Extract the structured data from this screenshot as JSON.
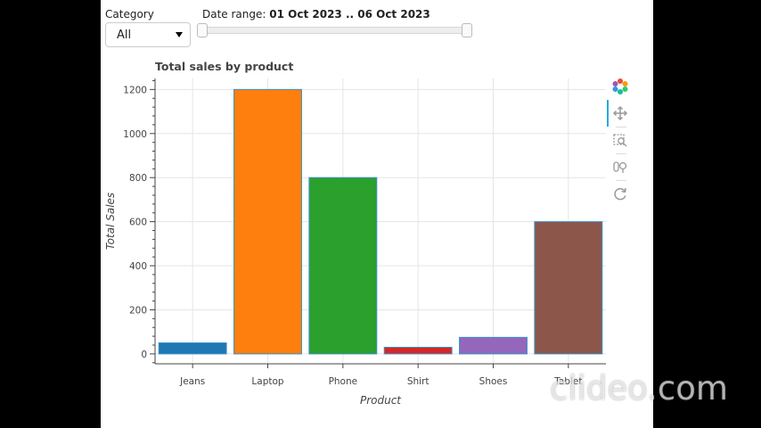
{
  "controls": {
    "category_label": "Category",
    "category_value": "All",
    "date_label": "Date range:",
    "date_value": "01 Oct 2023 .. 06 Oct 2023"
  },
  "watermark": "clideo.com",
  "toolbar": {
    "tools": [
      "bokeh-logo-icon",
      "pan-icon",
      "box-zoom-icon",
      "wheel-zoom-icon",
      "reset-icon"
    ]
  },
  "chart_data": {
    "type": "bar",
    "title": "Total sales by product",
    "xlabel": "Product",
    "ylabel": "Total Sales",
    "categories": [
      "Jeans",
      "Laptop",
      "Phone",
      "Shirt",
      "Shoes",
      "Tablet"
    ],
    "values": [
      50,
      1200,
      800,
      30,
      75,
      600
    ],
    "colors": [
      "#1f77b4",
      "#ff7f0e",
      "#2ca02c",
      "#d62728",
      "#9467bd",
      "#8c564b"
    ],
    "ylim": [
      -45,
      1250
    ],
    "yticks": [
      0,
      200,
      400,
      600,
      800,
      1000,
      1200
    ],
    "grid": true
  }
}
